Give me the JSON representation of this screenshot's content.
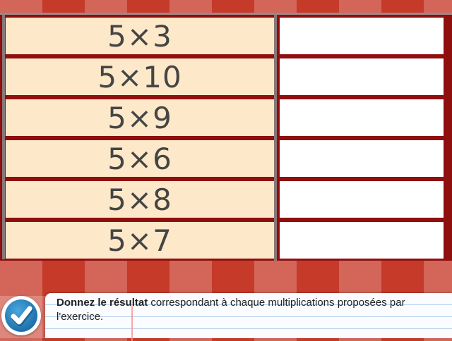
{
  "exercise": {
    "questions": [
      {
        "label": "5×3",
        "answer": ""
      },
      {
        "label": "5×10",
        "answer": ""
      },
      {
        "label": "5×9",
        "answer": ""
      },
      {
        "label": "5×6",
        "answer": ""
      },
      {
        "label": "5×8",
        "answer": ""
      },
      {
        "label": "5×7",
        "answer": ""
      }
    ]
  },
  "instruction": {
    "bold": "Donnez le résultat",
    "rest": " correspondant à chaque multiplications proposées par l'exercice."
  },
  "validate_button": {
    "icon": "checkmark-icon"
  },
  "colors": {
    "background": "#c63a2a",
    "frame": "#8f0e0e",
    "question_cell": "#fde9c9",
    "answer_cell": "#ffffff",
    "button": "#1f72ac"
  }
}
